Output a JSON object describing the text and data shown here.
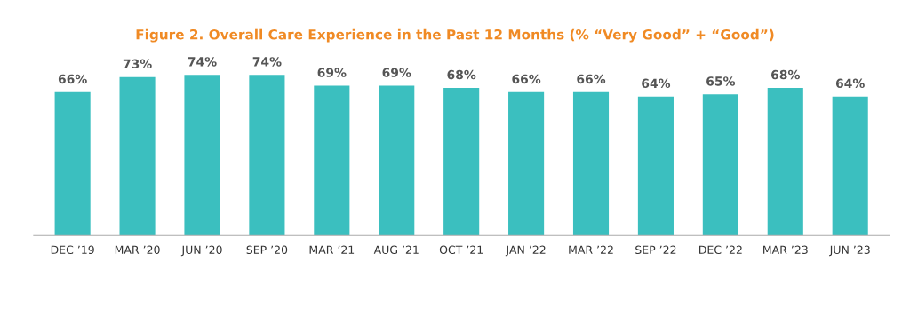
{
  "chart_data": {
    "type": "bar",
    "title": "Figure 2. Overall Care Experience in the Past 12 Months (% “Very Good” + “Good”)",
    "categories": [
      "DEC ’19",
      "MAR ’20",
      "JUN ’20",
      "SEP ’20",
      "MAR ’21",
      "AUG ’21",
      "OCT ’21",
      "JAN ’22",
      "MAR ’22",
      "SEP ’22",
      "DEC ’22",
      "MAR ’23",
      "JUN ’23"
    ],
    "values": [
      66,
      73,
      74,
      74,
      69,
      69,
      68,
      66,
      66,
      64,
      65,
      68,
      64
    ],
    "value_labels": [
      "66%",
      "73%",
      "74%",
      "74%",
      "69%",
      "69%",
      "68%",
      "66%",
      "66%",
      "64%",
      "65%",
      "68%",
      "64%"
    ],
    "color": "#3bbfbf",
    "grid": false,
    "legend": false
  }
}
